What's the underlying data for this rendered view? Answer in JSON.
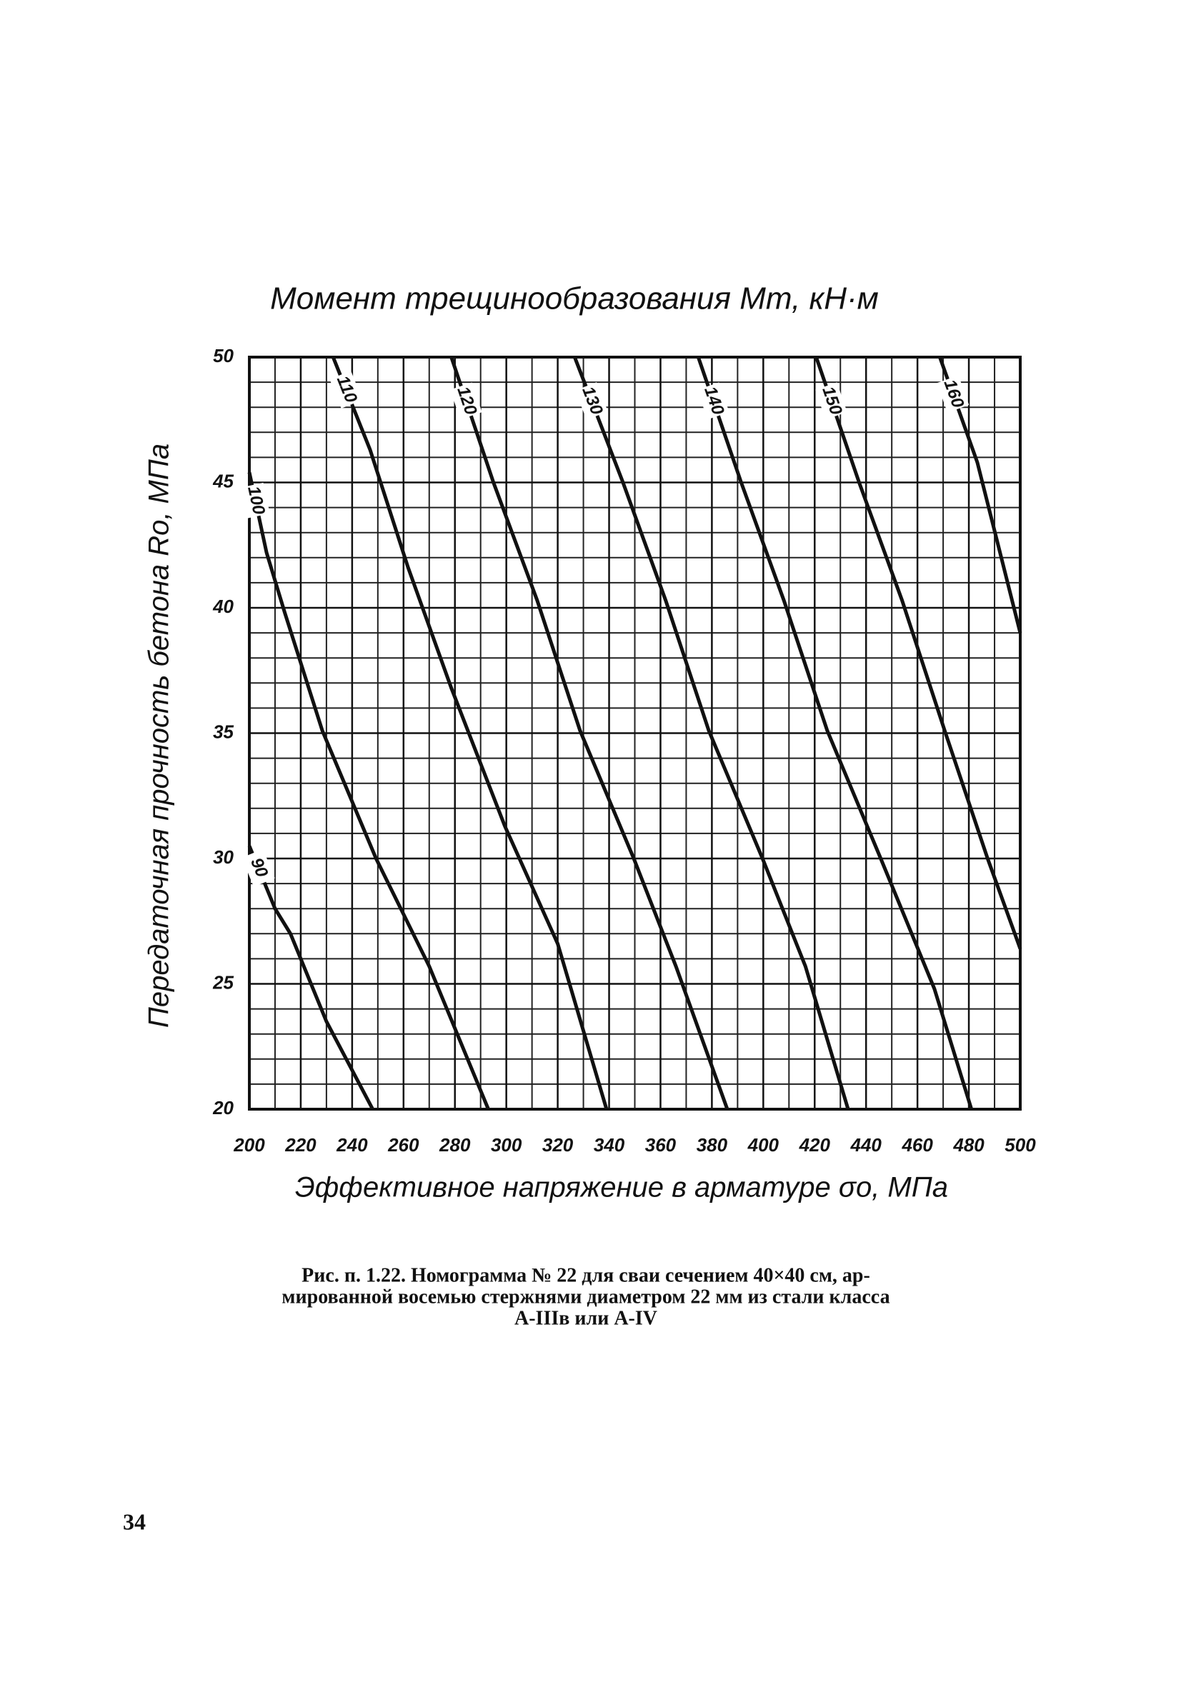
{
  "chart_data": {
    "type": "line",
    "title": "Момент трещинообразования Mт, кН·м",
    "x_label": "Эффективное напряжение в арматуре σо, МПа",
    "y_label": "Передаточная прочность бетона Rо, МПа",
    "xlim": [
      200,
      500
    ],
    "ylim": [
      20,
      50
    ],
    "xticks": [
      200,
      220,
      240,
      260,
      280,
      300,
      320,
      340,
      360,
      380,
      400,
      420,
      440,
      460,
      480,
      500
    ],
    "yticks": [
      20,
      25,
      30,
      35,
      40,
      45,
      50
    ],
    "grid": true,
    "series": [
      {
        "name": "90",
        "color": "#111111",
        "x": [
          200,
          210,
          216,
          230,
          248
        ],
        "values": [
          30.5,
          28,
          27,
          23.5,
          20
        ]
      },
      {
        "name": "100",
        "color": "#111111",
        "x": [
          200,
          206.7,
          213.8,
          228.4,
          249.3,
          270,
          293
        ],
        "values": [
          45.4,
          42.2,
          39.8,
          35.1,
          30,
          25.7,
          20
        ]
      },
      {
        "name": "110",
        "color": "#111111",
        "x": [
          232.6,
          247,
          261.8,
          278.6,
          299.4,
          320,
          339
        ],
        "values": [
          50,
          46.3,
          41.6,
          36.8,
          31.3,
          26.6,
          20
        ]
      },
      {
        "name": "120",
        "color": "#111111",
        "x": [
          278.6,
          295,
          312,
          328.7,
          349.6,
          366,
          386
        ],
        "values": [
          50,
          45,
          40.3,
          35.1,
          30,
          25.7,
          20
        ]
      },
      {
        "name": "130",
        "color": "#111111",
        "x": [
          326.6,
          345.4,
          362,
          378.8,
          399.7,
          416.4,
          433
        ],
        "values": [
          50,
          45,
          40.3,
          35.1,
          30,
          25.7,
          20
        ]
      },
      {
        "name": "140",
        "color": "#111111",
        "x": [
          374.7,
          391.4,
          408,
          424.9,
          445.7,
          466.6,
          481
        ],
        "values": [
          50,
          45,
          40.3,
          35.1,
          30,
          24.8,
          20
        ]
      },
      {
        "name": "150",
        "color": "#111111",
        "x": [
          420.6,
          437.3,
          454,
          470.6,
          487.3,
          500
        ],
        "values": [
          50,
          45,
          40.3,
          35.1,
          30,
          26.4
        ]
      },
      {
        "name": "160",
        "color": "#111111",
        "x": [
          468.7,
          483.3,
          500
        ],
        "values": [
          50,
          45.8,
          39
        ]
      }
    ]
  },
  "caption": {
    "lines": [
      "Рис. п. 1.22. Номограмма № 22 для сваи сечением 40×40 см, ар-",
      "мированной восемью стержнями диаметром 22 мм из стали класса",
      "A-IIIв или A-IV"
    ]
  },
  "page_number": "34"
}
